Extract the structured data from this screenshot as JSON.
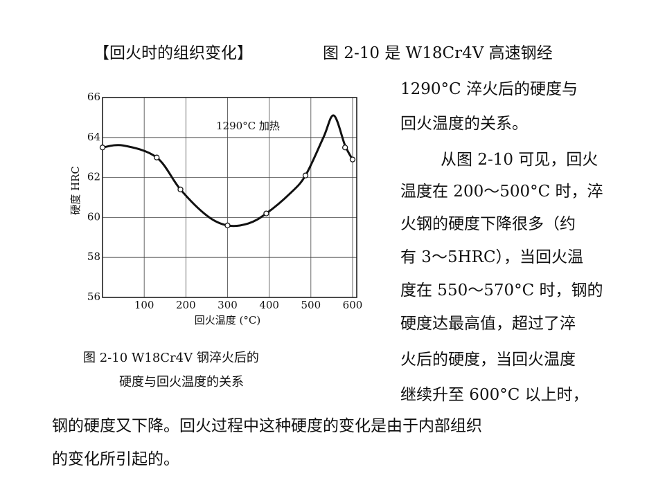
{
  "heading": "【回火时的组织变化】",
  "side_text": [
    "图 2-10 是 W18Cr4V 高速钢经",
    "1290°C 淬火后的硬度与",
    "回火温度的关系。",
    "从图 2-10 可见，回火",
    "温度在 200～500°C 时，淬",
    "火钢的硬度下降很多（约",
    "有 3～5HRC），当回火温",
    "度在 550～570°C 时，钢的",
    "硬度达最高值，超过了淬",
    "火后的硬度，当回火温度",
    "继续升至 600°C 以上时，"
  ],
  "body_text": [
    "钢的硬度又下降。回火过程中这种硬度的变化是由于内部组织",
    "的变化所引起的。"
  ],
  "caption": [
    "图 2-10   W18Cr4V 钢淬火后的",
    "硬度与回火温度的关系"
  ],
  "chart_data": {
    "type": "line",
    "annotation": "1290°C 加热",
    "x_label": "回火温度 (°C)",
    "y_label": "硬度 HRC",
    "xlim": [
      0,
      610
    ],
    "ylim": [
      56,
      66
    ],
    "xticks": [
      100,
      200,
      300,
      400,
      500,
      600
    ],
    "yticks": [
      56,
      58,
      60,
      62,
      64,
      66
    ],
    "grid": true,
    "color": "#111111",
    "series": [
      {
        "x": [
          0,
          50,
          130,
          187,
          250,
          300,
          350,
          393,
          450,
          487,
          530,
          555,
          582,
          600
        ],
        "values": [
          63.5,
          63.6,
          63.0,
          61.4,
          60.1,
          59.6,
          59.7,
          60.2,
          61.2,
          62.1,
          64.0,
          65.1,
          63.6,
          62.9
        ]
      },
      {
        "x": [
          0,
          130,
          187,
          300,
          393,
          487,
          582,
          600
        ],
        "values": [
          63.5,
          63.0,
          61.4,
          59.6,
          60.2,
          62.1,
          63.5,
          62.9
        ]
      }
    ]
  }
}
